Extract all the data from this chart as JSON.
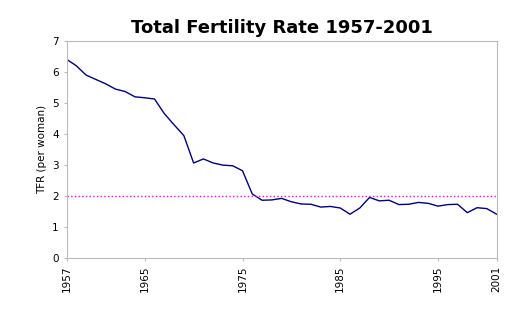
{
  "title": "Total Fertility Rate 1957-2001",
  "xlabel": "",
  "ylabel": "TFR (per woman)",
  "xlim": [
    1957,
    2001
  ],
  "ylim": [
    0,
    7
  ],
  "yticks": [
    0,
    1,
    2,
    3,
    4,
    5,
    6,
    7
  ],
  "xticks": [
    1957,
    1965,
    1975,
    1985,
    1995,
    2001
  ],
  "replacement_line_y": 2.0,
  "line_color": "#000080",
  "dotted_line_color": "#ff00ff",
  "background_color": "#ffffff",
  "title_fontsize": 13,
  "years": [
    1957,
    1958,
    1959,
    1960,
    1961,
    1962,
    1963,
    1964,
    1965,
    1966,
    1967,
    1968,
    1969,
    1970,
    1971,
    1972,
    1973,
    1974,
    1975,
    1976,
    1977,
    1978,
    1979,
    1980,
    1981,
    1982,
    1983,
    1984,
    1985,
    1986,
    1987,
    1988,
    1989,
    1990,
    1991,
    1992,
    1993,
    1994,
    1995,
    1996,
    1997,
    1998,
    1999,
    2000,
    2001
  ],
  "tfr": [
    6.41,
    6.2,
    5.9,
    5.76,
    5.62,
    5.45,
    5.37,
    5.2,
    5.17,
    5.13,
    4.66,
    4.3,
    3.95,
    3.07,
    3.2,
    3.07,
    3.0,
    2.98,
    2.82,
    2.07,
    1.87,
    1.88,
    1.93,
    1.82,
    1.75,
    1.74,
    1.65,
    1.67,
    1.62,
    1.42,
    1.62,
    1.96,
    1.85,
    1.87,
    1.73,
    1.74,
    1.8,
    1.77,
    1.68,
    1.73,
    1.74,
    1.47,
    1.63,
    1.6,
    1.42
  ]
}
